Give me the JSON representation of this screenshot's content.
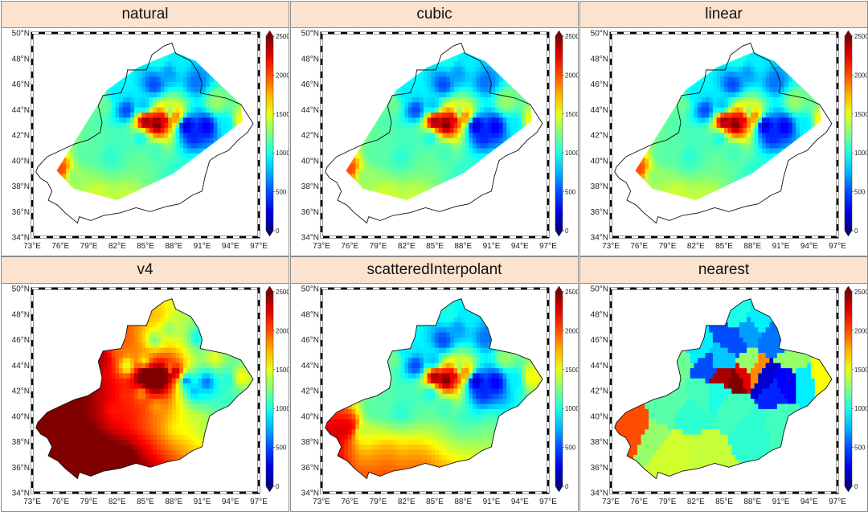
{
  "chart_data": [
    {
      "type": "heatmap",
      "title": "natural",
      "method": "natural",
      "extent": "hull",
      "bias": 0
    },
    {
      "type": "heatmap",
      "title": "cubic",
      "method": "cubic",
      "extent": "hull",
      "bias": 0
    },
    {
      "type": "heatmap",
      "title": "linear",
      "method": "linear",
      "extent": "hull",
      "bias": 0
    },
    {
      "type": "heatmap",
      "title": "v4",
      "method": "v4",
      "extent": "region",
      "bias": 0
    },
    {
      "type": "heatmap",
      "title": "scatteredInterpolant",
      "method": "scatteredInterpolant",
      "extent": "region",
      "bias": 250
    },
    {
      "type": "heatmap",
      "title": "nearest",
      "method": "nearest",
      "extent": "region",
      "bias": 0
    }
  ],
  "axes": {
    "x_ticks": [
      "73°E",
      "76°E",
      "79°E",
      "82°E",
      "85°E",
      "88°E",
      "91°E",
      "94°E",
      "97°E"
    ],
    "y_ticks": [
      "34°N",
      "36°N",
      "38°N",
      "40°N",
      "42°N",
      "44°N",
      "46°N",
      "48°N",
      "50°N"
    ],
    "xlim": [
      73,
      97
    ],
    "ylim": [
      34,
      50
    ]
  },
  "colorbar": {
    "ticks": [
      "0",
      "500",
      "1000",
      "1500",
      "2000",
      "2500"
    ],
    "range": [
      0,
      2500
    ],
    "colormap": "jet"
  },
  "samples": [
    {
      "lon": 76.0,
      "lat": 39.4,
      "v": 2000
    },
    {
      "lon": 79.9,
      "lat": 37.1,
      "v": 1450
    },
    {
      "lon": 82.9,
      "lat": 36.9,
      "v": 1420
    },
    {
      "lon": 88.2,
      "lat": 39.0,
      "v": 1050
    },
    {
      "lon": 84.5,
      "lat": 41.8,
      "v": 1000
    },
    {
      "lon": 81.3,
      "lat": 40.5,
      "v": 1050
    },
    {
      "lon": 78.5,
      "lat": 40.4,
      "v": 1150
    },
    {
      "lon": 77.5,
      "lat": 38.8,
      "v": 1300
    },
    {
      "lon": 80.0,
      "lat": 41.2,
      "v": 1150
    },
    {
      "lon": 82.5,
      "lat": 41.7,
      "v": 1100
    },
    {
      "lon": 86.2,
      "lat": 42.9,
      "v": 2500
    },
    {
      "lon": 85.0,
      "lat": 43.1,
      "v": 2400
    },
    {
      "lon": 87.0,
      "lat": 43.3,
      "v": 2250
    },
    {
      "lon": 87.6,
      "lat": 43.8,
      "v": 1300
    },
    {
      "lon": 88.2,
      "lat": 43.5,
      "v": 1850
    },
    {
      "lon": 89.3,
      "lat": 42.8,
      "v": 200
    },
    {
      "lon": 90.1,
      "lat": 42.0,
      "v": 400
    },
    {
      "lon": 91.4,
      "lat": 42.7,
      "v": 300
    },
    {
      "lon": 93.6,
      "lat": 42.9,
      "v": 900
    },
    {
      "lon": 95.2,
      "lat": 43.1,
      "v": 1550
    },
    {
      "lon": 83.0,
      "lat": 44.0,
      "v": 500
    },
    {
      "lon": 84.8,
      "lat": 44.4,
      "v": 800
    },
    {
      "lon": 82.0,
      "lat": 45.2,
      "v": 900
    },
    {
      "lon": 85.9,
      "lat": 46.0,
      "v": 500
    },
    {
      "lon": 87.5,
      "lat": 46.9,
      "v": 700
    },
    {
      "lon": 88.5,
      "lat": 47.6,
      "v": 900
    },
    {
      "lon": 86.5,
      "lat": 48.0,
      "v": 1000
    },
    {
      "lon": 90.4,
      "lat": 46.2,
      "v": 600
    },
    {
      "lon": 80.5,
      "lat": 44.5,
      "v": 1200
    },
    {
      "lon": 92.5,
      "lat": 44.6,
      "v": 1300
    },
    {
      "lon": 90.9,
      "lat": 39.5,
      "v": 1100
    },
    {
      "lon": 86.0,
      "lat": 40.8,
      "v": 1100
    }
  ]
}
